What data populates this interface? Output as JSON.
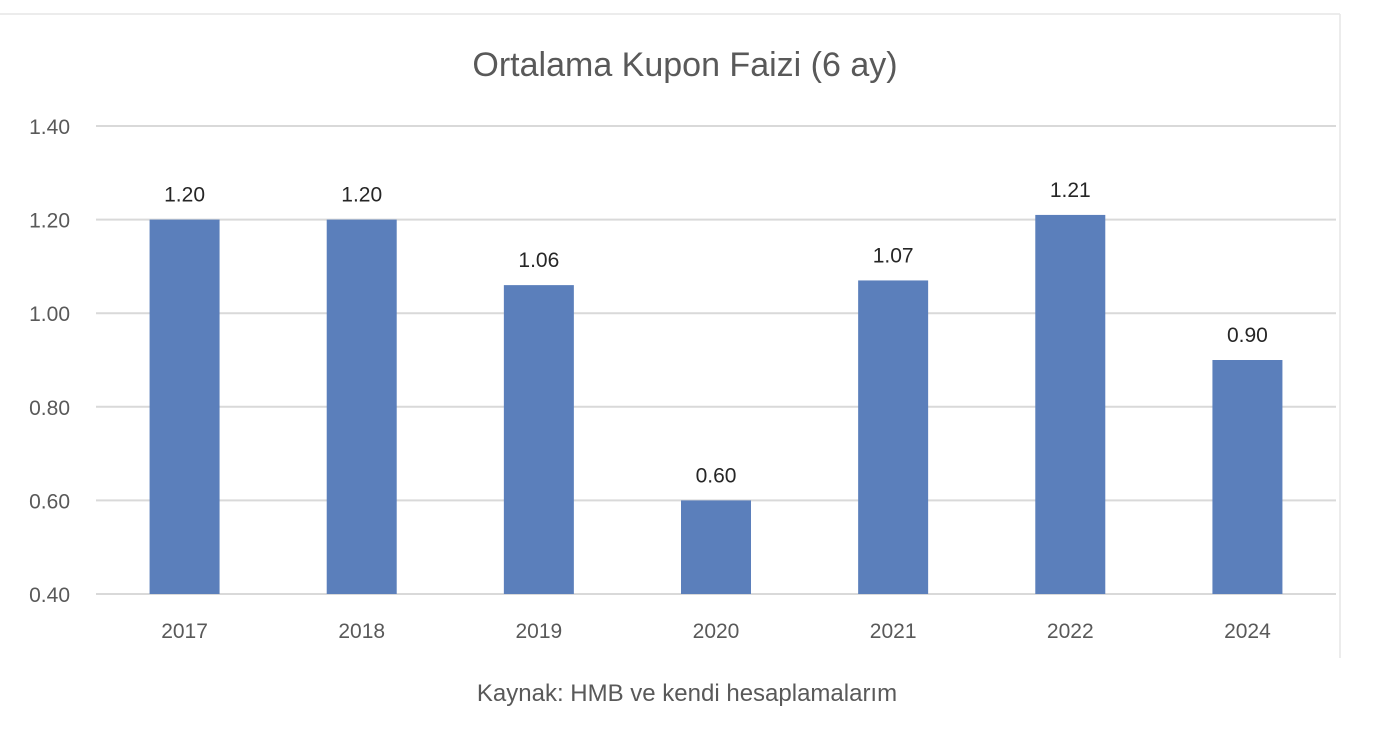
{
  "chart_data": {
    "type": "bar",
    "title": "Ortalama Kupon Faizi (6 ay)",
    "categories": [
      "2017",
      "2018",
      "2019",
      "2020",
      "2021",
      "2022",
      "2024"
    ],
    "values": [
      1.2,
      1.2,
      1.06,
      0.6,
      1.07,
      1.21,
      0.9
    ],
    "value_labels": [
      "1.20",
      "1.20",
      "1.06",
      "0.60",
      "1.07",
      "1.21",
      "0.90"
    ],
    "yticks": [
      "0.40",
      "0.60",
      "0.80",
      "1.00",
      "1.20",
      "1.40"
    ],
    "ylim": [
      0.4,
      1.4
    ],
    "xlabel": "",
    "ylabel": "",
    "grid": true,
    "bar_color": "#5b7fbb",
    "grid_color": "#d9d9d9"
  },
  "caption": "Kaynak: HMB ve kendi hesaplamalarım"
}
